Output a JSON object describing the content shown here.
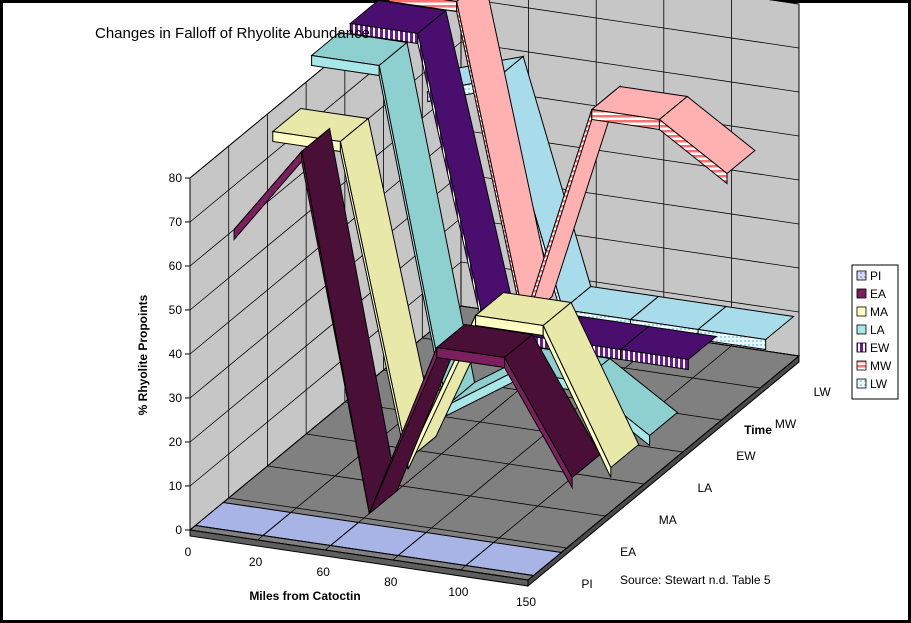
{
  "chart_data": {
    "type": "3d-ribbon-line",
    "title": "Changes in Falloff of Rhyolite Abundance",
    "xlabel": "Miles from Catoctin",
    "ylabel": "% Rhyolite Propoints",
    "zlabel": "Time",
    "x_ticks": [
      "0",
      "20",
      "60",
      "80",
      "100",
      "150"
    ],
    "y_ticks": [
      "0",
      "10",
      "20",
      "30",
      "40",
      "50",
      "60",
      "70",
      "80"
    ],
    "ylim": [
      0,
      80
    ],
    "depth_categories": [
      "PI",
      "EA",
      "MA",
      "LA",
      "EW",
      "MW",
      "LW"
    ],
    "source_note": "Source:  Stewart n.d. Table 5",
    "legend_position": "right",
    "grid": true,
    "series": [
      {
        "name": "PI",
        "color": "#a9b4e6",
        "pattern": "dots",
        "values": [
          0,
          0,
          0,
          0,
          0,
          0
        ]
      },
      {
        "name": "EA",
        "color": "#7b1f5e",
        "pattern": "solid",
        "values": [
          60,
          80,
          0,
          40,
          40,
          15
        ]
      },
      {
        "name": "MA",
        "color": "#ffffc4",
        "pattern": "solid",
        "values": [
          75,
          75,
          5,
          40,
          40,
          10
        ]
      },
      {
        "name": "LA",
        "color": "#a8e7e7",
        "pattern": "solid",
        "values": [
          85,
          85,
          10,
          20,
          20,
          10
        ]
      },
      {
        "name": "EW",
        "color": "#6a1a9a",
        "pattern": "vstripes",
        "values": [
          85,
          85,
          20,
          20,
          20,
          20
        ]
      },
      {
        "name": "MW",
        "color": "#ff8a8a",
        "pattern": "hstripes",
        "values": [
          85,
          85,
          15,
          65,
          65,
          55
        ]
      },
      {
        "name": "LW",
        "color": "#bfe9f5",
        "pattern": "dots",
        "values": [
          55,
          60,
          10,
          10,
          10,
          10
        ]
      }
    ]
  }
}
